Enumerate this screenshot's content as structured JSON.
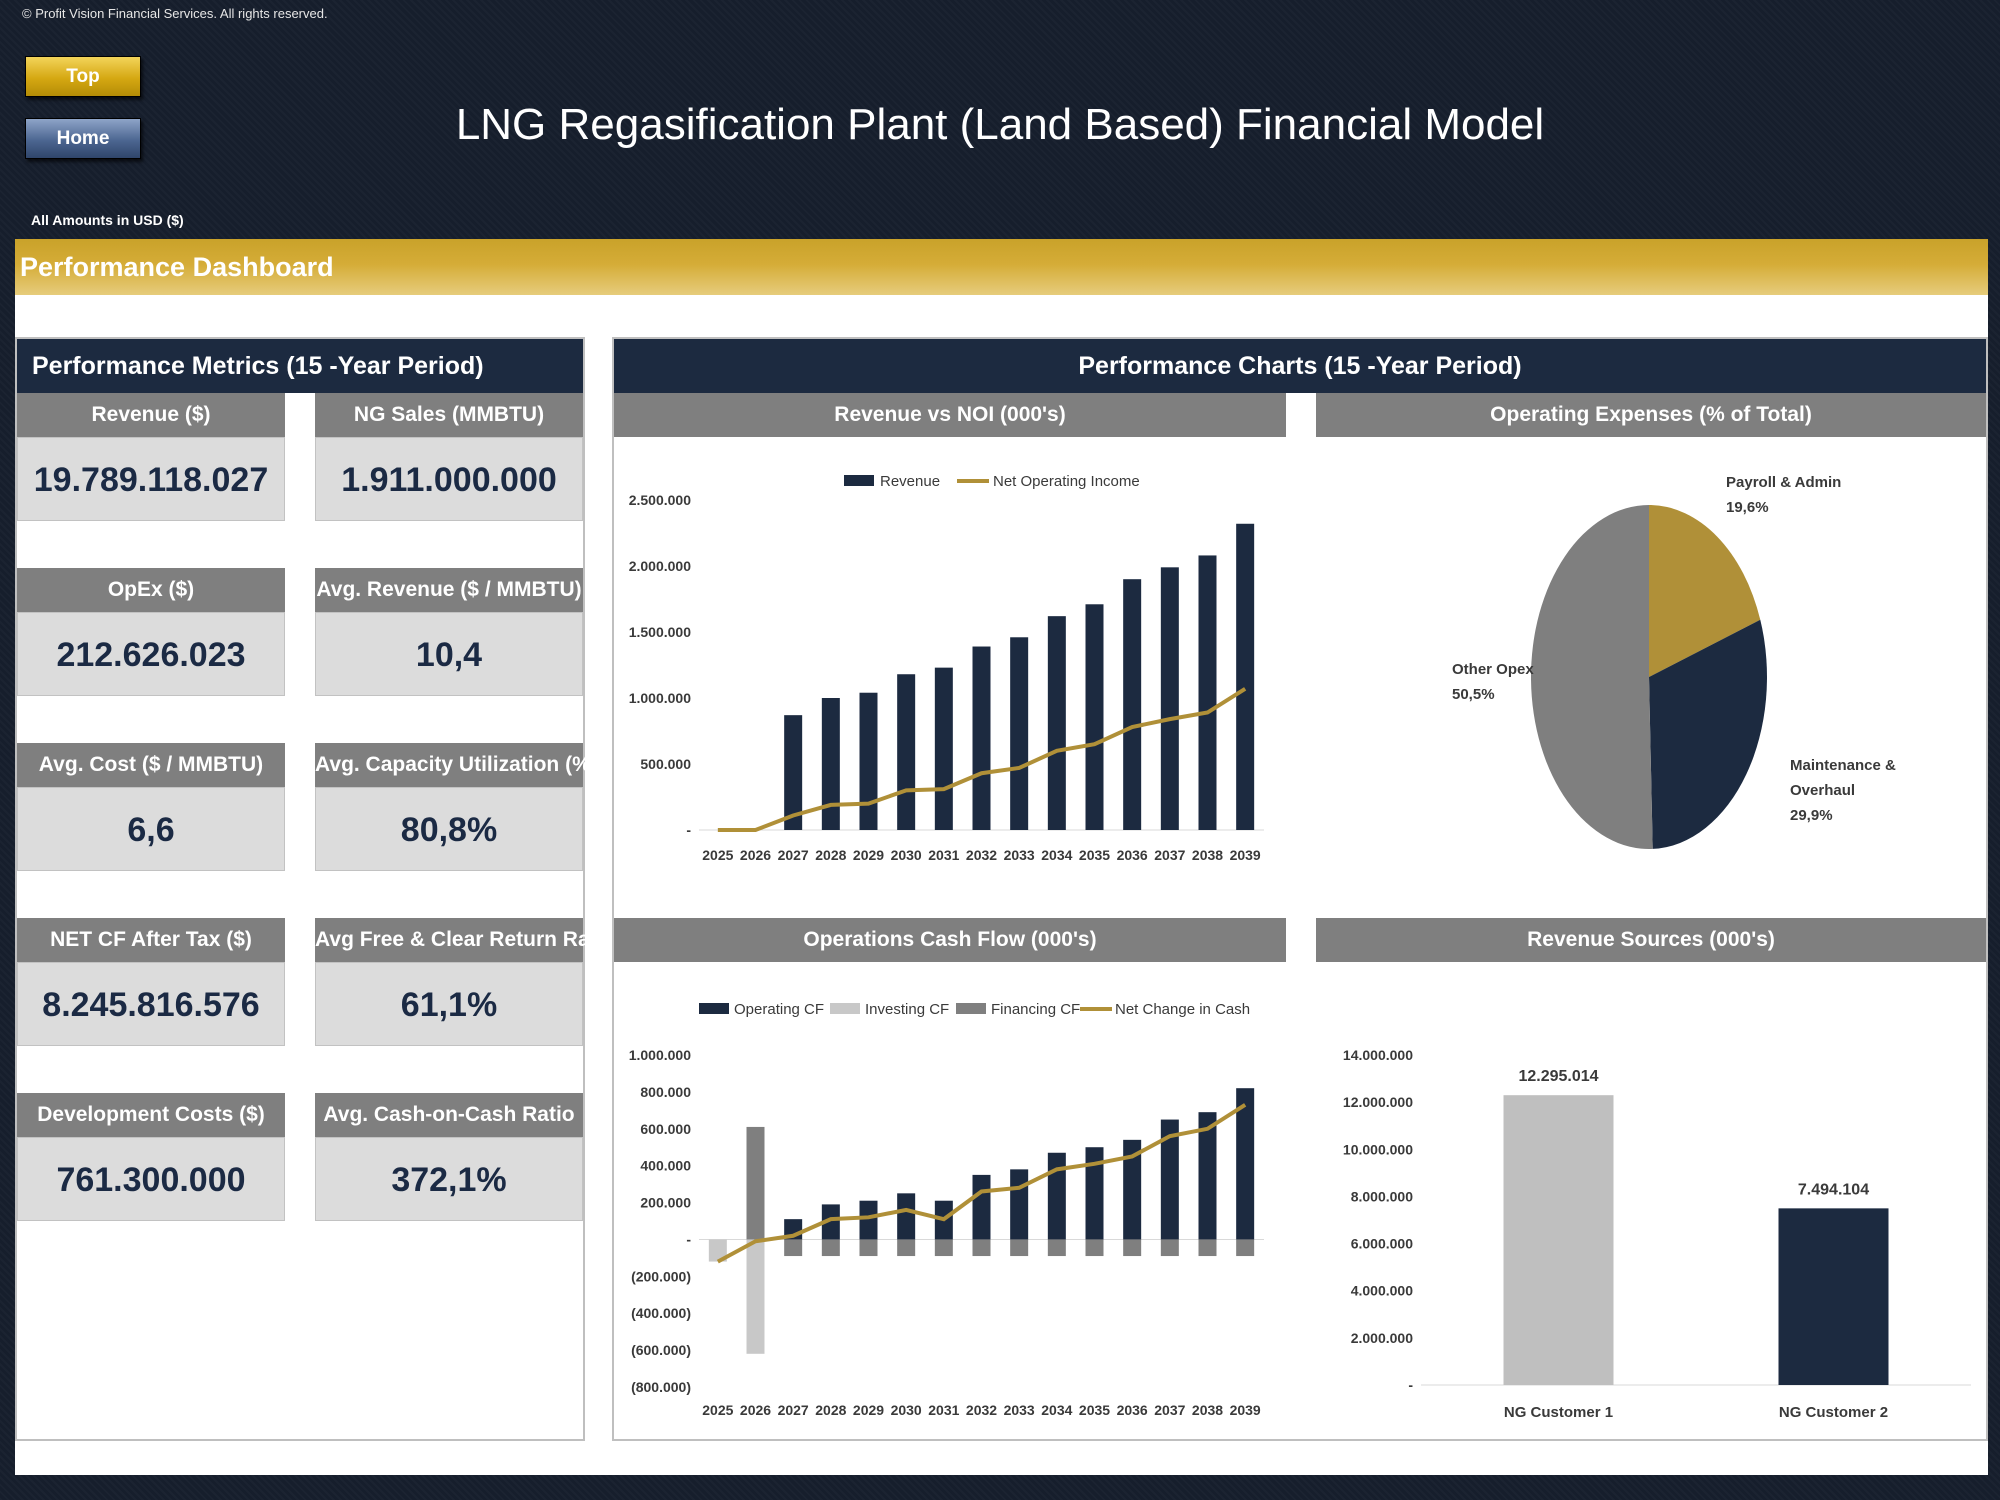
{
  "copyright": "© Profit Vision Financial Services. All rights reserved.",
  "buttons": {
    "top": "Top",
    "home": "Home"
  },
  "title": "LNG Regasification Plant (Land Based) Financial Model",
  "amounts_note": "All Amounts in  USD ($)",
  "section_title": "Performance Dashboard",
  "metrics_panel": {
    "title": "Performance Metrics (15 -Year Period)",
    "metrics": [
      {
        "label": "Revenue ($)",
        "value": "19.789.118.027"
      },
      {
        "label": "NG Sales (MMBTU)",
        "value": "1.911.000.000"
      },
      {
        "label": "OpEx ($)",
        "value": "212.626.023"
      },
      {
        "label": "Avg. Revenue ($ / MMBTU)",
        "value": "10,4"
      },
      {
        "label": "Avg. Cost ($ / MMBTU)",
        "value": "6,6"
      },
      {
        "label": "Avg. Capacity Utilization (%)",
        "value": "80,8%"
      },
      {
        "label": "NET CF After Tax ($)",
        "value": "8.245.816.576"
      },
      {
        "label": "Avg Free & Clear Return Ratio",
        "value": "61,1%"
      },
      {
        "label": "Development Costs ($)",
        "value": "761.300.000"
      },
      {
        "label": "Avg. Cash-on-Cash Ratio",
        "value": "372,1%"
      }
    ]
  },
  "charts_panel": {
    "title": "Performance Charts (15 -Year Period)"
  },
  "colors": {
    "navy": "#1c2a40",
    "gold": "#b09038",
    "gray": "#7f7f7f",
    "lightgray": "#bfbfbf"
  },
  "chart_data": [
    {
      "type": "bar",
      "title": "Revenue vs NOI (000's)",
      "categories": [
        "2025",
        "2026",
        "2027",
        "2028",
        "2029",
        "2030",
        "2031",
        "2032",
        "2033",
        "2034",
        "2035",
        "2036",
        "2037",
        "2038",
        "2039"
      ],
      "series": [
        {
          "name": "Revenue",
          "type": "bar",
          "color": "#1c2a40",
          "values": [
            0,
            0,
            870000,
            1000000,
            1040000,
            1180000,
            1230000,
            1390000,
            1460000,
            1620000,
            1710000,
            1900000,
            1990000,
            2080000,
            2320000
          ]
        },
        {
          "name": "Net Operating Income",
          "type": "line",
          "color": "#b09038",
          "values": [
            0,
            0,
            110000,
            190000,
            200000,
            300000,
            310000,
            430000,
            470000,
            600000,
            650000,
            780000,
            840000,
            890000,
            1070000
          ]
        }
      ],
      "yticks": [
        "-",
        "500.000",
        "1.000.000",
        "1.500.000",
        "2.000.000",
        "2.500.000"
      ],
      "ylim": [
        0,
        2500000
      ],
      "legend": "top"
    },
    {
      "type": "pie",
      "title": "Operating Expenses (% of Total)",
      "slices": [
        {
          "label": "Payroll & Admin",
          "pct": "19,6%",
          "value": 19.6,
          "color": "#b09038"
        },
        {
          "label": "Maintenance & Overhaul",
          "label_lines": [
            "Maintenance &",
            "Overhaul"
          ],
          "pct": "29,9%",
          "value": 29.9,
          "color": "#1c2a40"
        },
        {
          "label": "Other Opex",
          "pct": "50,5%",
          "value": 50.5,
          "color": "#7f7f7f"
        }
      ]
    },
    {
      "type": "bar",
      "title": "Operations Cash Flow (000's)",
      "categories": [
        "2025",
        "2026",
        "2027",
        "2028",
        "2029",
        "2030",
        "2031",
        "2032",
        "2033",
        "2034",
        "2035",
        "2036",
        "2037",
        "2038",
        "2039"
      ],
      "series": [
        {
          "name": "Operating CF",
          "type": "bar",
          "color": "#1c2a40",
          "values": [
            0,
            0,
            110000,
            190000,
            210000,
            250000,
            210000,
            350000,
            380000,
            470000,
            500000,
            540000,
            650000,
            690000,
            820000
          ]
        },
        {
          "name": "Investing CF",
          "type": "bar",
          "color": "#c8c8c8",
          "values": [
            -120000,
            -620000,
            0,
            0,
            0,
            0,
            0,
            0,
            0,
            0,
            0,
            0,
            0,
            0,
            0
          ]
        },
        {
          "name": "Financing CF",
          "type": "bar",
          "color": "#7f7f7f",
          "values": [
            0,
            610000,
            -90000,
            -90000,
            -90000,
            -90000,
            -90000,
            -90000,
            -90000,
            -90000,
            -90000,
            -90000,
            -90000,
            -90000,
            -90000
          ]
        },
        {
          "name": "Net Change in Cash",
          "type": "line",
          "color": "#b09038",
          "values": [
            -120000,
            -10000,
            20000,
            110000,
            120000,
            160000,
            110000,
            260000,
            280000,
            380000,
            410000,
            450000,
            560000,
            600000,
            730000
          ]
        }
      ],
      "yticks": [
        "(800.000)",
        "(600.000)",
        "(400.000)",
        "(200.000)",
        "-",
        "200.000",
        "400.000",
        "600.000",
        "800.000",
        "1.000.000"
      ],
      "ylim": [
        -800000,
        1000000
      ],
      "legend": "top"
    },
    {
      "type": "bar",
      "title": "Revenue Sources (000's)",
      "categories": [
        "NG Customer 1",
        "NG Customer 2"
      ],
      "values": [
        12295014,
        7494104
      ],
      "value_labels": [
        "12.295.014",
        "7.494.104"
      ],
      "colors": [
        "#bfbfbf",
        "#1c2a40"
      ],
      "yticks": [
        "-",
        "2.000.000",
        "4.000.000",
        "6.000.000",
        "8.000.000",
        "10.000.000",
        "12.000.000",
        "14.000.000"
      ],
      "ylim": [
        0,
        14000000
      ]
    }
  ]
}
